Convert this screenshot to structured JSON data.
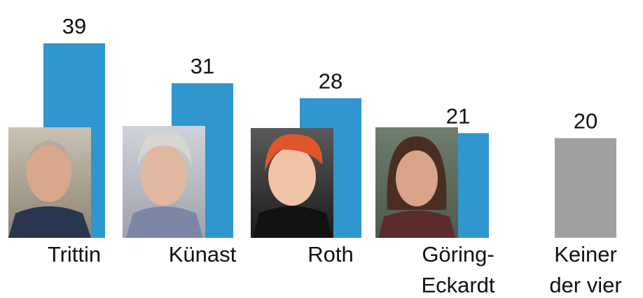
{
  "chart_data": {
    "type": "bar",
    "categories": [
      "Trittin",
      "Künast",
      "Roth",
      "Göring-Eckardt",
      "Keiner der vier"
    ],
    "values": [
      39,
      31,
      28,
      21,
      20
    ],
    "colors": [
      "#2f96cf",
      "#2f96cf",
      "#2f96cf",
      "#2f96cf",
      "#a0a0a0"
    ]
  }
}
